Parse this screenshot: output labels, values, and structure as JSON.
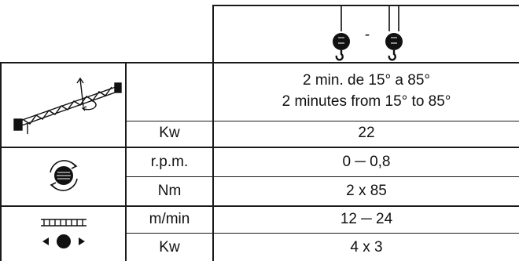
{
  "header": {
    "hoist_columns_icon": "double-hook-icon",
    "separator": "-"
  },
  "rows": [
    {
      "icon": "luffing-boom-icon",
      "unit": "",
      "value_lines": [
        "2 min. de 15° a 85°",
        "2 minutes from 15° to 85°"
      ]
    },
    {
      "icon": "",
      "unit": "Kw",
      "value": "22"
    },
    {
      "icon": "slewing-icon",
      "unit": "r.p.m.",
      "value": "0 ─ 0,8"
    },
    {
      "icon": "",
      "unit": "Nm",
      "value": "2 x 85"
    },
    {
      "icon": "trolley-travel-icon",
      "unit": "m/min",
      "value": "12 ─ 24"
    },
    {
      "icon": "",
      "unit": "Kw",
      "value": "4 x 3"
    }
  ]
}
